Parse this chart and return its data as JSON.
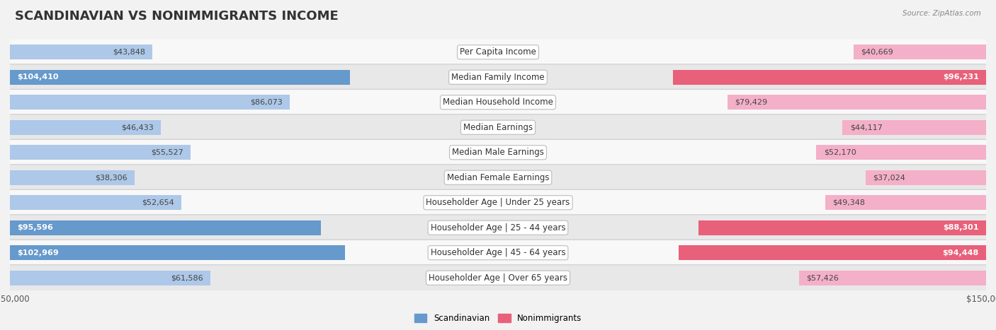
{
  "title": "SCANDINAVIAN VS NONIMMIGRANTS INCOME",
  "source": "Source: ZipAtlas.com",
  "categories": [
    "Per Capita Income",
    "Median Family Income",
    "Median Household Income",
    "Median Earnings",
    "Median Male Earnings",
    "Median Female Earnings",
    "Householder Age | Under 25 years",
    "Householder Age | 25 - 44 years",
    "Householder Age | 45 - 64 years",
    "Householder Age | Over 65 years"
  ],
  "scandinavian": [
    43848,
    104410,
    86073,
    46433,
    55527,
    38306,
    52654,
    95596,
    102969,
    61586
  ],
  "nonimmigrants": [
    40669,
    96231,
    79429,
    44117,
    52170,
    37024,
    49348,
    88301,
    94448,
    57426
  ],
  "max_val": 150000,
  "scand_color_light": "#adc8e8",
  "scand_color_dark": "#6699cc",
  "nonim_color_light": "#f4b0c8",
  "nonim_color_dark": "#e8607a",
  "scand_label": "Scandinavian",
  "nonim_label": "Nonimmigrants",
  "bar_height": 0.58,
  "bg_color": "#f2f2f2",
  "row_bg_light": "#f8f8f8",
  "row_bg_dark": "#e8e8e8",
  "title_fontsize": 13,
  "label_fontsize": 8.5,
  "value_fontsize": 8,
  "axis_fontsize": 8.5,
  "white_text_threshold": 0.6,
  "scand_dark_threshold": 0.6,
  "nonim_dark_threshold": 0.57
}
